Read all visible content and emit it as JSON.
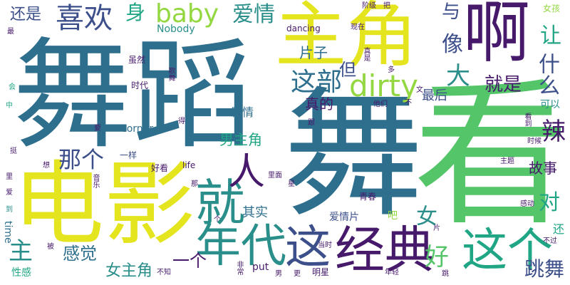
{
  "palette": {
    "purple": "#46196b",
    "navy": "#3c4f8a",
    "teal": "#2f6f8e",
    "cyan": "#2a8f8a",
    "sea": "#21a685",
    "green": "#54c568",
    "lime": "#93d741",
    "yellow": "#e4e51e"
  },
  "words": [
    {
      "id": "w001",
      "text": "舞蹈"
    },
    {
      "id": "w002",
      "text": "舞"
    },
    {
      "id": "w003",
      "text": "看"
    },
    {
      "id": "w004",
      "text": "电影"
    },
    {
      "id": "w005",
      "text": "主角"
    },
    {
      "id": "w006",
      "text": "啊"
    },
    {
      "id": "w007",
      "text": "经典"
    },
    {
      "id": "w008",
      "text": "就"
    },
    {
      "id": "w009",
      "text": "年代"
    },
    {
      "id": "w010",
      "text": "这个"
    },
    {
      "id": "w011",
      "text": "这"
    },
    {
      "id": "w012",
      "text": "喜欢"
    },
    {
      "id": "w013",
      "text": "baby"
    },
    {
      "id": "w014",
      "text": "人"
    },
    {
      "id": "w015",
      "text": "dirty"
    },
    {
      "id": "w016",
      "text": "这部"
    },
    {
      "id": "w017",
      "text": "爱情"
    },
    {
      "id": "w018",
      "text": "身"
    },
    {
      "id": "w019",
      "text": "还是"
    },
    {
      "id": "w020",
      "text": "与"
    },
    {
      "id": "w021",
      "text": "像"
    },
    {
      "id": "w022",
      "text": "让"
    },
    {
      "id": "w023",
      "text": "大"
    },
    {
      "id": "w024",
      "text": "就是"
    },
    {
      "id": "w025",
      "text": "什么"
    },
    {
      "id": "w026",
      "text": "辣"
    },
    {
      "id": "w027",
      "text": "那个"
    },
    {
      "id": "w028",
      "text": "故事"
    },
    {
      "id": "w029",
      "text": "对"
    },
    {
      "id": "w030",
      "text": "女"
    },
    {
      "id": "w031",
      "text": "主"
    },
    {
      "id": "w032",
      "text": "好"
    },
    {
      "id": "w033",
      "text": "跳舞"
    },
    {
      "id": "w034",
      "text": "感觉"
    },
    {
      "id": "w035",
      "text": "女主角"
    },
    {
      "id": "w036",
      "text": "一个"
    },
    {
      "id": "w037",
      "text": "男主角"
    },
    {
      "id": "w038",
      "text": "剧情"
    },
    {
      "id": "w039",
      "text": "真的"
    },
    {
      "id": "w040",
      "text": "最后"
    },
    {
      "id": "w041",
      "text": "片子"
    },
    {
      "id": "w042",
      "text": "但"
    },
    {
      "id": "w043",
      "text": "其实"
    },
    {
      "id": "w044",
      "text": "爱情片"
    },
    {
      "id": "w045",
      "text": "Nobody"
    },
    {
      "id": "w046",
      "text": "dancing"
    },
    {
      "id": "w047",
      "text": "corner"
    },
    {
      "id": "w048",
      "text": "life"
    },
    {
      "id": "w049",
      "text": "time"
    },
    {
      "id": "w050",
      "text": "put"
    },
    {
      "id": "w051",
      "text": "一样"
    },
    {
      "id": "w052",
      "text": "好看"
    },
    {
      "id": "w053",
      "text": "虽然"
    },
    {
      "id": "w054",
      "text": "时代"
    },
    {
      "id": "w055",
      "text": "性感"
    },
    {
      "id": "w056",
      "text": "还"
    },
    {
      "id": "w057",
      "text": "可以"
    },
    {
      "id": "w058",
      "text": "女孩"
    },
    {
      "id": "w059",
      "text": "阶级"
    },
    {
      "id": "w060",
      "text": "把"
    },
    {
      "id": "w061",
      "text": "现在"
    },
    {
      "id": "w062",
      "text": "最"
    },
    {
      "id": "w063",
      "text": "会"
    },
    {
      "id": "w064",
      "text": "中"
    },
    {
      "id": "w065",
      "text": "要"
    },
    {
      "id": "w066",
      "text": "得"
    },
    {
      "id": "w067",
      "text": "挺"
    },
    {
      "id": "w068",
      "text": "想"
    },
    {
      "id": "w069",
      "text": "里"
    },
    {
      "id": "w070",
      "text": "爱"
    },
    {
      "id": "w071",
      "text": "到"
    },
    {
      "id": "w072",
      "text": "音乐"
    },
    {
      "id": "w073",
      "text": "里面"
    },
    {
      "id": "w074",
      "text": "那"
    },
    {
      "id": "w075",
      "text": "青春"
    },
    {
      "id": "w076",
      "text": "吧"
    },
    {
      "id": "w077",
      "text": "当时"
    },
    {
      "id": "w078",
      "text": "不知"
    },
    {
      "id": "w079",
      "text": "被"
    },
    {
      "id": "w080",
      "text": "更"
    },
    {
      "id": "w081",
      "text": "明星"
    },
    {
      "id": "w082",
      "text": "年轻"
    },
    {
      "id": "w083",
      "text": "跳"
    },
    {
      "id": "w084",
      "text": "片"
    },
    {
      "id": "w085",
      "text": "不过"
    },
    {
      "id": "w086",
      "text": "感动"
    },
    {
      "id": "w087",
      "text": "主题"
    },
    {
      "id": "w088",
      "text": "时候"
    },
    {
      "id": "w089",
      "text": "看到"
    },
    {
      "id": "w090",
      "text": "他们"
    },
    {
      "id": "w091",
      "text": "不"
    },
    {
      "id": "w092",
      "text": "跟"
    },
    {
      "id": "w093",
      "text": "文"
    },
    {
      "id": "w094",
      "text": "多"
    },
    {
      "id": "w095",
      "text": "真是"
    },
    {
      "id": "w096",
      "text": "歌舞"
    },
    {
      "id": "w097",
      "text": "星"
    },
    {
      "id": "w098",
      "text": "男"
    },
    {
      "id": "w099",
      "text": "个"
    },
    {
      "id": "w100",
      "text": "非常"
    }
  ]
}
